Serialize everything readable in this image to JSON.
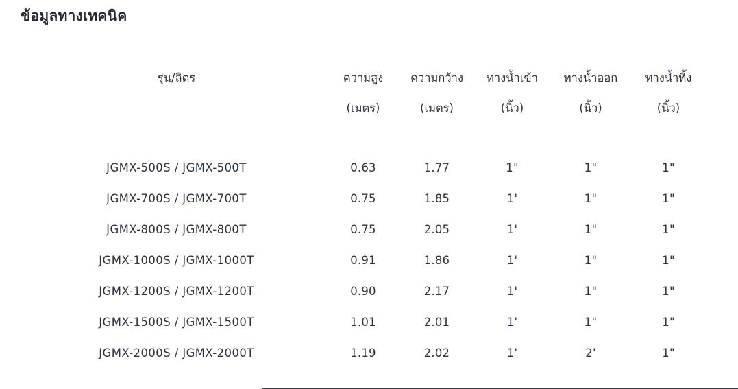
{
  "page": {
    "title": "ข้อมูลทางเทคนิค"
  },
  "table": {
    "columns": [
      {
        "label": "รุ่น/ลิตร",
        "unit": ""
      },
      {
        "label": "ความสูง",
        "unit": "(เมตร)"
      },
      {
        "label": "ความกว้าง",
        "unit": "(เมตร)"
      },
      {
        "label": "ทางน้ำเข้า",
        "unit": "(นิ้ว)"
      },
      {
        "label": "ทางน้ำออก",
        "unit": "(นิ้ว)"
      },
      {
        "label": "ทางน้ำทิ้ง",
        "unit": "(นิ้ว)"
      }
    ],
    "rows": [
      [
        "JGMX-500S / JGMX-500T",
        "0.63",
        "1.77",
        "1\"",
        "1\"",
        "1\""
      ],
      [
        "JGMX-700S / JGMX-700T",
        "0.75",
        "1.85",
        "1'",
        "1\"",
        "1\""
      ],
      [
        "JGMX-800S / JGMX-800T",
        "0.75",
        "2.05",
        "1'",
        "1\"",
        "1\""
      ],
      [
        "JGMX-1000S / JGMX-1000T",
        "0.91",
        "1.86",
        "1'",
        "1\"",
        "1\""
      ],
      [
        "JGMX-1200S / JGMX-1200T",
        "0.90",
        "2.17",
        "1'",
        "1\"",
        "1\""
      ],
      [
        "JGMX-1500S / JGMX-1500T",
        "1.01",
        "2.01",
        "1'",
        "1\"",
        "1\""
      ],
      [
        "JGMX-2000S / JGMX-2000T",
        "1.19",
        "2.02",
        "1'",
        "2'",
        "1\""
      ]
    ]
  },
  "colors": {
    "background": "#ffffff",
    "title_text": "#262a33",
    "header_text": "#2f3540",
    "cell_text": "#2e3340",
    "footer_divider": "#3a3f47"
  }
}
